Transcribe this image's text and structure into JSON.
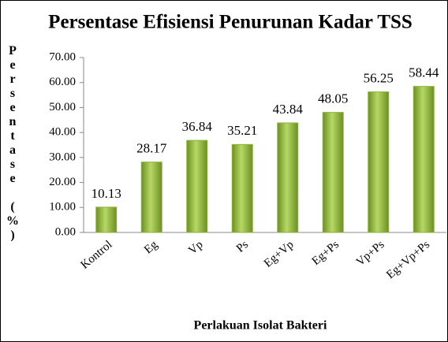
{
  "chart_data": {
    "type": "bar",
    "title": "Persentase Efisiensi Penurunan Kadar TSS",
    "y_label": "Persentase (%)",
    "x_label": "Perlakuan Isolat Bakteri",
    "categories": [
      "Kontrol",
      "Eg",
      "Vp",
      "Ps",
      "Eg+Vp",
      "Eg+Ps",
      "Vp+Ps",
      "Eg+Vp+Ps"
    ],
    "values": [
      10.13,
      28.17,
      36.84,
      35.21,
      43.84,
      48.05,
      56.25,
      58.44
    ],
    "color": "#8db33a",
    "ylim": [
      0,
      70
    ],
    "yticks": [
      {
        "value": 0,
        "label": "0.00"
      },
      {
        "value": 10,
        "label": "10.00"
      },
      {
        "value": 20,
        "label": "20.00"
      },
      {
        "value": 30,
        "label": "30.00"
      },
      {
        "value": 40,
        "label": "40.00"
      },
      {
        "value": 50,
        "label": "50.00"
      },
      {
        "value": 60,
        "label": "60.00"
      },
      {
        "value": 70,
        "label": "70.00"
      }
    ],
    "grid": false
  }
}
